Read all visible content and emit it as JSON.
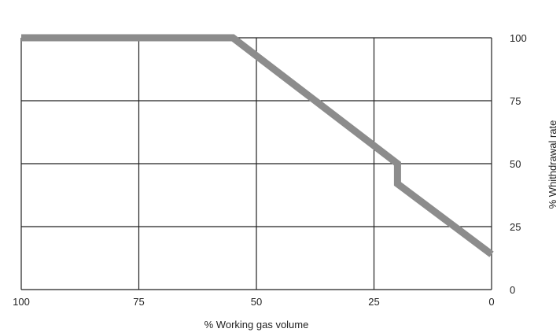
{
  "chart_data": {
    "type": "line",
    "title": "",
    "xlabel": "% Working gas volume",
    "ylabel": "% Whithdrawal rate",
    "xlim": [
      100,
      0
    ],
    "ylim": [
      0,
      100
    ],
    "x_reversed": true,
    "y_axis_side": "right",
    "grid": true,
    "legend": "none",
    "x_ticks": [
      "100",
      "75",
      "50",
      "25",
      "0"
    ],
    "y_ticks": [
      "0",
      "25",
      "50",
      "75",
      "100"
    ],
    "series": [
      {
        "x": [
          100,
          55,
          20,
          20,
          0
        ],
        "y": [
          100,
          100,
          50,
          42,
          14
        ]
      }
    ],
    "colors": {
      "line": "#8c8c8c",
      "grid": "#222222",
      "text": "#222222"
    }
  }
}
